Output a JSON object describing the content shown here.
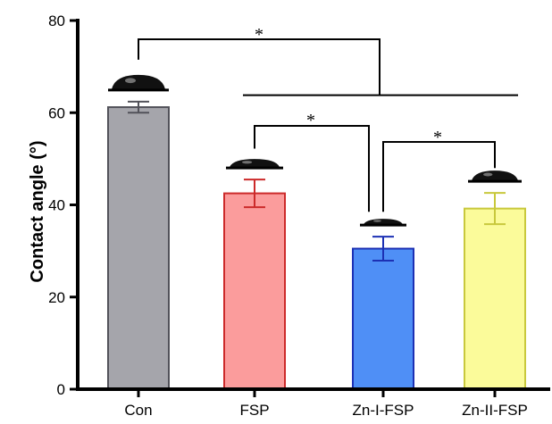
{
  "chart_data": {
    "type": "bar",
    "title": "",
    "xlabel": "",
    "ylabel": "Contact angle (°)",
    "categories": [
      "Con",
      "FSP",
      "Zn-I-FSP",
      "Zn-II-FSP"
    ],
    "values": [
      61.2,
      42.5,
      30.5,
      39.2
    ],
    "errors": [
      1.2,
      3.0,
      2.6,
      3.4
    ],
    "ylim": [
      0,
      80
    ],
    "yticks": [
      0,
      20,
      40,
      60,
      80
    ],
    "grid": false,
    "legend": "none",
    "bar_fill_colors": [
      "#a5a5ab",
      "#fb9c9c",
      "#4f8ff6",
      "#fbfb9a"
    ],
    "bar_edge_colors": [
      "#52525a",
      "#cc2a2a",
      "#1c30b4",
      "#c8c83c"
    ],
    "droplet_icons": "water-droplet-icon",
    "significance": [
      {
        "groups": [
          "Con",
          "FSP, Zn-I-FSP, Zn-II-FSP"
        ],
        "label": "*"
      },
      {
        "groups": [
          "FSP",
          "Zn-I-FSP"
        ],
        "label": "*"
      },
      {
        "groups": [
          "Zn-I-FSP",
          "Zn-II-FSP"
        ],
        "label": "*"
      }
    ]
  }
}
